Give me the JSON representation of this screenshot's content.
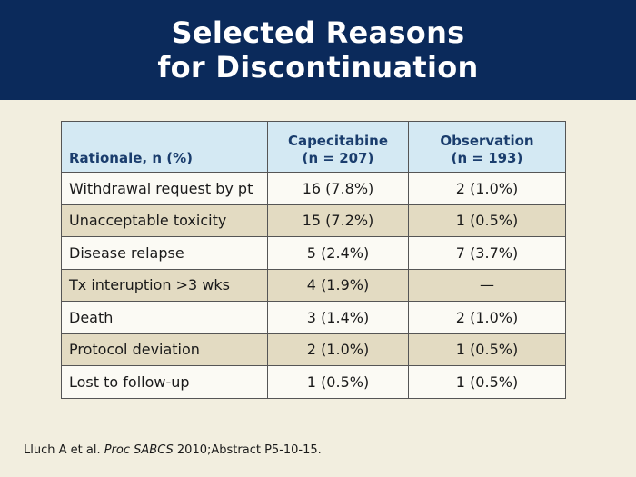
{
  "title": {
    "line1": "Selected Reasons",
    "line2": "for Discontinuation"
  },
  "table": {
    "headers": {
      "col1": "Rationale, n (%)",
      "col2_line1": "Capecitabine",
      "col2_line2": "(n = 207)",
      "col3_line1": "Observation",
      "col3_line2": "(n = 193)"
    },
    "rows": [
      {
        "rationale": "Withdrawal request by pt",
        "capecitabine": "16 (7.8%)",
        "observation": "2 (1.0%)"
      },
      {
        "rationale": "Unacceptable toxicity",
        "capecitabine": "15 (7.2%)",
        "observation": "1 (0.5%)"
      },
      {
        "rationale": "Disease relapse",
        "capecitabine": "5 (2.4%)",
        "observation": "7 (3.7%)"
      },
      {
        "rationale": "Tx interuption >3 wks",
        "capecitabine": "4 (1.9%)",
        "observation": "—"
      },
      {
        "rationale": "Death",
        "capecitabine": "3 (1.4%)",
        "observation": "2 (1.0%)"
      },
      {
        "rationale": "Protocol deviation",
        "capecitabine": "2 (1.0%)",
        "observation": "1 (0.5%)"
      },
      {
        "rationale": "Lost to follow-up",
        "capecitabine": "1 (0.5%)",
        "observation": "1 (0.5%)"
      }
    ]
  },
  "citation": {
    "authors": "Lluch A et al. ",
    "journal": "Proc SABCS",
    "rest": " 2010;Abstract P5-10-15."
  },
  "colors": {
    "title_bg": "#0b2a5b",
    "page_bg": "#f2eedf",
    "header_bg": "#d4e9f3",
    "header_text": "#1a3d6d",
    "row_light": "#fbfaf4",
    "row_dark": "#e3dbc2"
  }
}
